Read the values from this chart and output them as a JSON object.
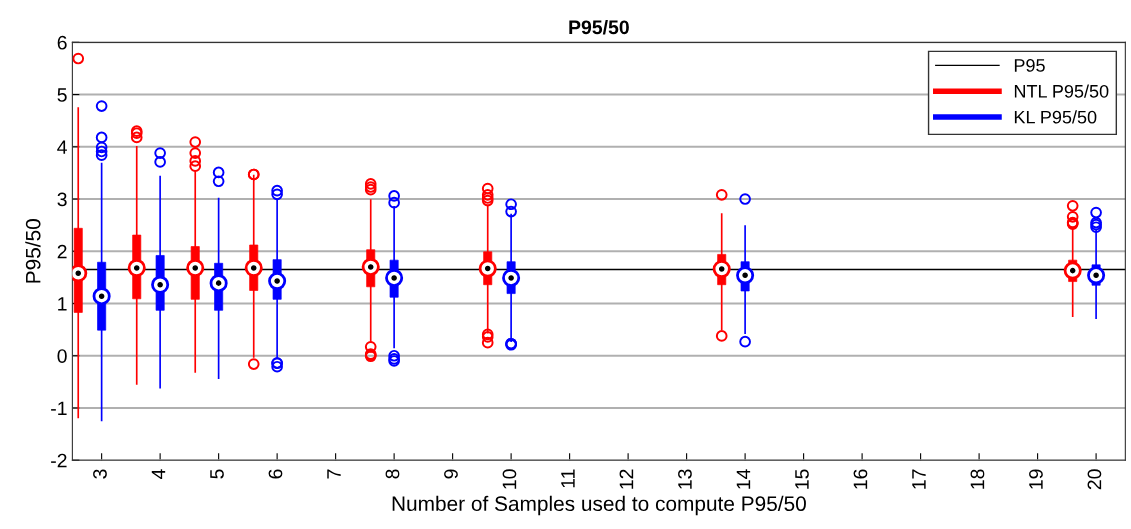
{
  "chart_data": {
    "type": "box",
    "title": "P95/50",
    "xlabel": "Number of Samples used to compute P95/50",
    "ylabel": "P95/50",
    "xlim": [
      2.5,
      20.5
    ],
    "xticks": [
      3,
      4,
      5,
      6,
      7,
      8,
      9,
      10,
      11,
      12,
      13,
      14,
      15,
      16,
      17,
      18,
      19,
      20
    ],
    "ylim": [
      -2,
      6
    ],
    "yticks": [
      -2,
      -1,
      0,
      1,
      2,
      3,
      4,
      5,
      6
    ],
    "grid": "y",
    "legend": "top right",
    "ref_lines": [
      {
        "axis": "y",
        "value": 1.65,
        "label": "P95",
        "color": "#000000",
        "line_style": "solid"
      }
    ],
    "series": [
      {
        "name": "NTL P95/50",
        "color": "#ff0000",
        "x": [
          2.6,
          3.6,
          4.6,
          5.6,
          7.6,
          9.6,
          13.6,
          19.6
        ],
        "boxes": [
          {
            "low": -1.18,
            "q1": 0.83,
            "median": 1.58,
            "q3": 2.44,
            "high": 4.74,
            "outliers": [
              5.69
            ]
          },
          {
            "low": -0.54,
            "q1": 1.09,
            "median": 1.68,
            "q3": 2.31,
            "high": 4.0,
            "outliers": [
              4.26,
              4.3,
              4.18
            ]
          },
          {
            "low": -0.31,
            "q1": 1.08,
            "median": 1.68,
            "q3": 2.09,
            "high": 3.52,
            "outliers": [
              4.09,
              3.88,
              3.73,
              3.63
            ]
          },
          {
            "low": -0.02,
            "q1": 1.25,
            "median": 1.68,
            "q3": 2.12,
            "high": 3.45,
            "outliers": [
              3.47,
              3.47,
              -0.16
            ]
          },
          {
            "low": 0.28,
            "q1": 1.32,
            "median": 1.7,
            "q3": 2.03,
            "high": 2.98,
            "outliers": [
              3.29,
              3.23,
              3.18,
              0.17,
              0.03,
              0.01,
              -0.01
            ]
          },
          {
            "low": 0.44,
            "q1": 1.36,
            "median": 1.67,
            "q3": 1.99,
            "high": 2.88,
            "outliers": [
              3.2,
              3.08,
              3.02,
              2.97,
              0.41,
              0.36,
              0.25
            ]
          },
          {
            "low": 0.51,
            "q1": 1.36,
            "median": 1.66,
            "q3": 1.94,
            "high": 2.71,
            "outliers": [
              3.08,
              0.38
            ]
          },
          {
            "low": 0.76,
            "q1": 1.42,
            "median": 1.63,
            "q3": 1.83,
            "high": 2.46,
            "outliers": [
              2.87,
              2.66,
              2.55,
              2.54,
              2.52
            ]
          }
        ]
      },
      {
        "name": "KL P95/50",
        "color": "#0000ff",
        "x": [
          3,
          4,
          5,
          6,
          8,
          10,
          14,
          20
        ],
        "boxes": [
          {
            "low": -1.24,
            "q1": 0.49,
            "median": 1.14,
            "q3": 1.79,
            "high": 3.68,
            "outliers": [
              4.78,
              4.18,
              3.99,
              3.91,
              3.84
            ]
          },
          {
            "low": -0.61,
            "q1": 0.87,
            "median": 1.36,
            "q3": 1.92,
            "high": 3.43,
            "outliers": [
              3.88,
              3.71
            ]
          },
          {
            "low": -0.43,
            "q1": 0.87,
            "median": 1.39,
            "q3": 1.77,
            "high": 3.01,
            "outliers": [
              3.51,
              3.34
            ]
          },
          {
            "low": -0.02,
            "q1": 1.08,
            "median": 1.43,
            "q3": 1.84,
            "high": 2.99,
            "outliers": [
              3.16,
              3.09,
              -0.14,
              -0.14,
              -0.21
            ]
          },
          {
            "low": 0.16,
            "q1": 1.12,
            "median": 1.49,
            "q3": 1.83,
            "high": 2.85,
            "outliers": [
              3.06,
              2.93,
              0.0,
              -0.06,
              -0.1
            ]
          },
          {
            "low": 0.28,
            "q1": 1.19,
            "median": 1.49,
            "q3": 1.8,
            "high": 2.7,
            "outliers": [
              2.9,
              2.76,
              0.23,
              0.23,
              0.21
            ]
          },
          {
            "low": 0.43,
            "q1": 1.24,
            "median": 1.54,
            "q3": 1.8,
            "high": 2.48,
            "outliers": [
              3.0,
              0.27
            ]
          },
          {
            "low": 0.72,
            "q1": 1.35,
            "median": 1.54,
            "q3": 1.74,
            "high": 2.41,
            "outliers": [
              2.74,
              2.55,
              2.51,
              2.46
            ]
          }
        ]
      }
    ]
  }
}
